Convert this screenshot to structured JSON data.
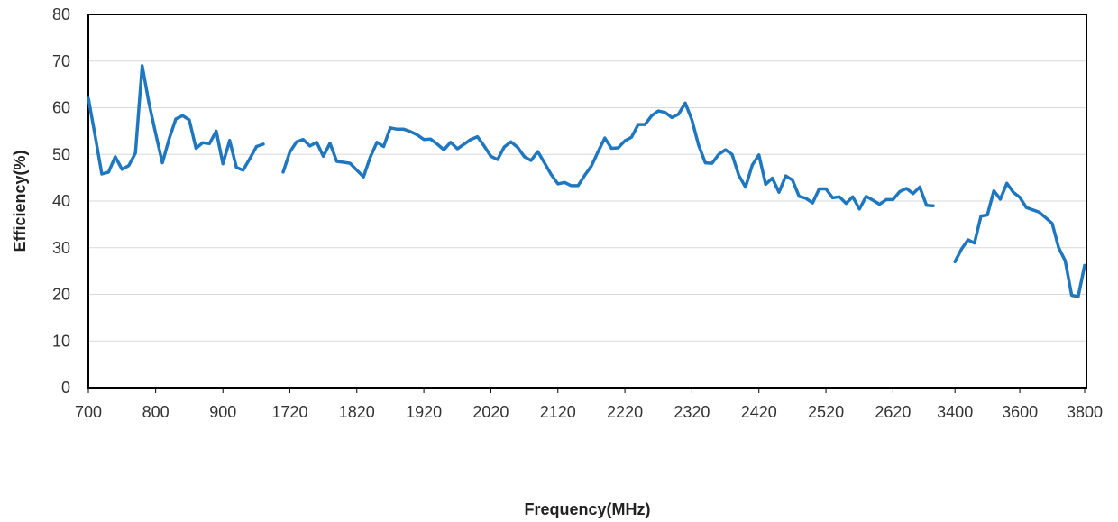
{
  "chart_data": {
    "type": "line",
    "xlabel": "Frequency(MHz)",
    "ylabel": "Efficiency(%)",
    "ylim": [
      0,
      80
    ],
    "yticks": [
      0,
      10,
      20,
      30,
      40,
      50,
      60,
      70,
      80
    ],
    "grid": "horizontal",
    "legend": "none",
    "x_tick_labels": [
      "700",
      "800",
      "900",
      "1720",
      "1820",
      "1920",
      "2020",
      "2120",
      "2220",
      "2320",
      "2420",
      "2520",
      "2620",
      "3400",
      "3600",
      "3800"
    ],
    "line_color": "#1f77c0",
    "segments": [
      {
        "x_range": [
          700,
          960
        ],
        "x_ticks": [
          "700",
          "800",
          "900"
        ],
        "x": [
          700,
          710,
          720,
          730,
          740,
          750,
          760,
          770,
          780,
          790,
          800,
          810,
          820,
          830,
          840,
          850,
          860,
          870,
          880,
          890,
          900,
          910,
          920,
          930,
          940,
          950,
          960
        ],
        "values": [
          62,
          54,
          45.8,
          46.2,
          49.5,
          46.8,
          47.6,
          50.3,
          69,
          61,
          54.5,
          48.2,
          53.3,
          57.6,
          58.3,
          57.4,
          51.3,
          52.5,
          52.3,
          55,
          48,
          53,
          47.2,
          46.6,
          49.1,
          51.7,
          52.2
        ]
      },
      {
        "x_range": [
          1710,
          2680
        ],
        "x_ticks": [
          "1720",
          "1820",
          "1920",
          "2020",
          "2120",
          "2220",
          "2320",
          "2420",
          "2520",
          "2620"
        ],
        "x": [
          1710,
          1720,
          1730,
          1740,
          1750,
          1760,
          1770,
          1780,
          1790,
          1800,
          1810,
          1820,
          1830,
          1840,
          1850,
          1860,
          1870,
          1880,
          1890,
          1900,
          1910,
          1920,
          1930,
          1940,
          1950,
          1960,
          1970,
          1980,
          1990,
          2000,
          2010,
          2020,
          2030,
          2040,
          2050,
          2060,
          2070,
          2080,
          2090,
          2100,
          2110,
          2120,
          2130,
          2140,
          2150,
          2160,
          2170,
          2180,
          2190,
          2200,
          2210,
          2220,
          2230,
          2240,
          2250,
          2260,
          2270,
          2280,
          2290,
          2300,
          2310,
          2320,
          2330,
          2340,
          2350,
          2360,
          2370,
          2380,
          2390,
          2400,
          2410,
          2420,
          2430,
          2440,
          2450,
          2460,
          2470,
          2480,
          2490,
          2500,
          2510,
          2520,
          2530,
          2540,
          2550,
          2560,
          2570,
          2580,
          2590,
          2600,
          2610,
          2620,
          2630,
          2640,
          2650,
          2660,
          2670,
          2680
        ],
        "values": [
          46.2,
          50.5,
          52.7,
          53.2,
          51.8,
          52.6,
          49.6,
          52.4,
          48.5,
          48.3,
          48.1,
          46.6,
          45.2,
          49.4,
          52.6,
          51.7,
          55.7,
          55.4,
          55.4,
          54.9,
          54.2,
          53.2,
          53.3,
          52.2,
          51,
          52.6,
          51.2,
          52.2,
          53.2,
          53.8,
          51.8,
          49.6,
          48.9,
          51.6,
          52.7,
          51.5,
          49.5,
          48.7,
          50.6,
          48.2,
          45.7,
          43.7,
          44,
          43.3,
          43.3,
          45.5,
          47.5,
          50.6,
          53.5,
          51.3,
          51.4,
          52.9,
          53.7,
          56.4,
          56.4,
          58.3,
          59.3,
          59,
          57.9,
          58.6,
          61,
          57.4,
          52,
          48.2,
          48.1,
          50,
          51,
          50,
          45.5,
          43,
          47.7,
          49.9,
          43.6,
          44.9,
          41.9,
          45.4,
          44.5,
          41,
          40.6,
          39.6,
          42.6,
          42.6,
          40.7,
          40.9,
          39.5,
          40.9,
          38.3,
          41,
          40.2,
          39.3,
          40.3,
          40.3,
          42,
          42.7,
          41.6,
          43,
          39.1,
          39
        ]
      },
      {
        "x_range": [
          3380,
          3800
        ],
        "x_ticks": [
          "3400",
          "3600",
          "3800"
        ],
        "x": [
          3400,
          3420,
          3440,
          3460,
          3480,
          3500,
          3520,
          3540,
          3560,
          3580,
          3600,
          3620,
          3640,
          3660,
          3680,
          3700,
          3720,
          3740,
          3760,
          3780,
          3800
        ],
        "values": [
          27,
          29.7,
          31.7,
          31,
          36.8,
          37,
          42.2,
          40.4,
          43.8,
          41.9,
          40.8,
          38.6,
          38.1,
          37.6,
          36.4,
          35.2,
          30,
          27.2,
          19.8,
          19.5,
          26.2
        ]
      }
    ]
  }
}
